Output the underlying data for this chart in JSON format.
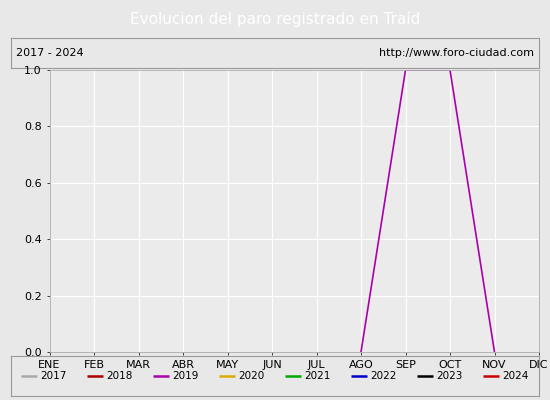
{
  "title": "Evolucion del paro registrado en Traíd",
  "title_color": "#ffffff",
  "title_bg_color": "#4f81bd",
  "subtitle_left": "2017 - 2024",
  "subtitle_right": "http://www.foro-ciudad.com",
  "months": [
    "ENE",
    "FEB",
    "MAR",
    "ABR",
    "MAY",
    "JUN",
    "JUL",
    "AGO",
    "SEP",
    "OCT",
    "NOV",
    "DIC"
  ],
  "month_indices": [
    1,
    2,
    3,
    4,
    5,
    6,
    7,
    8,
    9,
    10,
    11,
    12
  ],
  "ylim": [
    0.0,
    1.0
  ],
  "yticks": [
    0.0,
    0.2,
    0.4,
    0.6,
    0.8,
    1.0
  ],
  "background_color": "#e8e8e8",
  "plot_bg_color": "#ebebeb",
  "grid_color": "#ffffff",
  "series": [
    {
      "year": 2017,
      "color": "#aaaaaa",
      "linewidth": 1.0,
      "data": {}
    },
    {
      "year": 2018,
      "color": "#aa0000",
      "linewidth": 1.2,
      "data": {}
    },
    {
      "year": 2019,
      "color": "#aa00aa",
      "linewidth": 1.2,
      "data": {
        "8": 0.0,
        "9": 1.0,
        "10": 1.0,
        "11": 0.0
      }
    },
    {
      "year": 2020,
      "color": "#ddaa00",
      "linewidth": 1.2,
      "data": {}
    },
    {
      "year": 2021,
      "color": "#00aa00",
      "linewidth": 1.2,
      "data": {}
    },
    {
      "year": 2022,
      "color": "#0000cc",
      "linewidth": 1.2,
      "data": {}
    },
    {
      "year": 2023,
      "color": "#000000",
      "linewidth": 1.5,
      "data": {}
    },
    {
      "year": 2024,
      "color": "#cc0000",
      "linewidth": 1.2,
      "data": {}
    }
  ]
}
